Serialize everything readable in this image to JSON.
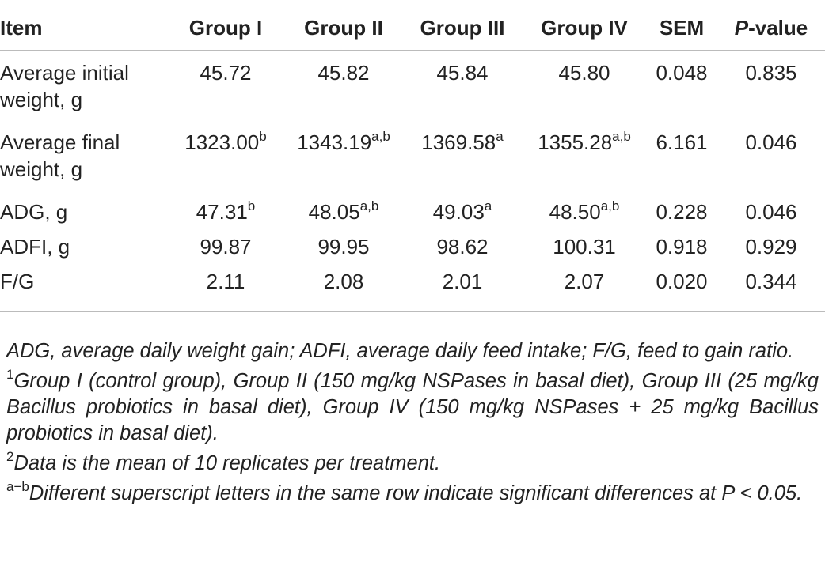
{
  "table": {
    "headers": {
      "item": "Item",
      "g1": "Group I",
      "g2": "Group II",
      "g3": "Group III",
      "g4": "Group IV",
      "sem": "SEM",
      "p_italic": "P",
      "p_rest": "-value"
    },
    "rows": [
      {
        "item": "Average initial weight, g",
        "g1": "45.72",
        "g1_sup": "",
        "g2": "45.82",
        "g2_sup": "",
        "g3": "45.84",
        "g3_sup": "",
        "g4": "45.80",
        "g4_sup": "",
        "sem": "0.048",
        "p": "0.835"
      },
      {
        "item": "Average final weight, g",
        "g1": "1323.00",
        "g1_sup": "b",
        "g2": "1343.19",
        "g2_sup": "a,b",
        "g3": "1369.58",
        "g3_sup": "a",
        "g4": "1355.28",
        "g4_sup": "a,b",
        "sem": "6.161",
        "p": "0.046"
      },
      {
        "item": "ADG, g",
        "g1": "47.31",
        "g1_sup": "b",
        "g2": "48.05",
        "g2_sup": "a,b",
        "g3": "49.03",
        "g3_sup": "a",
        "g4": "48.50",
        "g4_sup": "a,b",
        "sem": "0.228",
        "p": "0.046"
      },
      {
        "item": "ADFI, g",
        "g1": "99.87",
        "g1_sup": "",
        "g2": "99.95",
        "g2_sup": "",
        "g3": "98.62",
        "g3_sup": "",
        "g4": "100.31",
        "g4_sup": "",
        "sem": "0.918",
        "p": "0.929"
      },
      {
        "item": "F/G",
        "g1": "2.11",
        "g1_sup": "",
        "g2": "2.08",
        "g2_sup": "",
        "g3": "2.01",
        "g3_sup": "",
        "g4": "2.07",
        "g4_sup": "",
        "sem": "0.020",
        "p": "0.344"
      }
    ]
  },
  "footnotes": {
    "abbrev": "ADG, average daily weight gain; ADFI, average daily feed intake; F/G, feed to gain ratio.",
    "note1_mark": "1",
    "note1": "Group I (control group), Group II (150 mg/kg NSPases in basal diet), Group III (25 mg/kg Bacillus probiotics in basal diet), Group IV (150 mg/kg NSPases + 25 mg/kg Bacillus probiotics in basal diet).",
    "note2_mark": "2",
    "note2": "Data is the mean of 10 replicates per treatment.",
    "note3_mark": "a−b",
    "note3": "Different superscript letters in the same row indicate significant differences at P < 0.05."
  }
}
